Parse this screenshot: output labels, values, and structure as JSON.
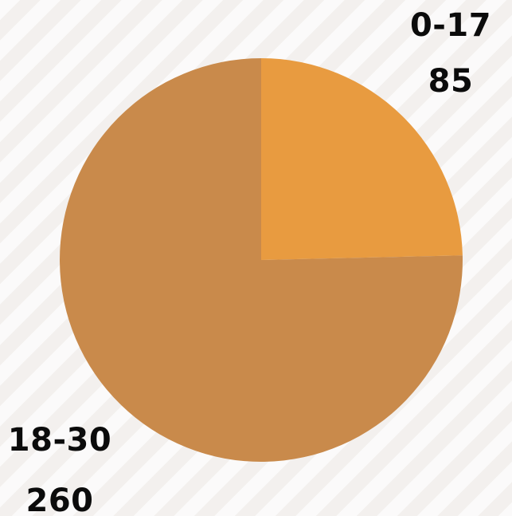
{
  "chart_data": {
    "type": "pie",
    "title": "",
    "slices": [
      {
        "label": "0-17",
        "value": 85,
        "color": "#E89B40"
      },
      {
        "label": "18-30",
        "value": 260,
        "color": "#C98A4B"
      }
    ],
    "start_angle": "12 o'clock, clockwise",
    "legend": "none"
  }
}
